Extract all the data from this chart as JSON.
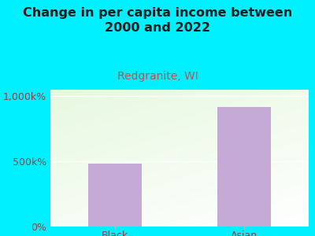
{
  "title": "Change in per capita income between\n2000 and 2022",
  "subtitle": "Redgranite, WI",
  "categories": [
    "Black",
    "Asian"
  ],
  "values": [
    480,
    920
  ],
  "ylim": [
    0,
    1050
  ],
  "yticks": [
    0,
    500,
    1000
  ],
  "ytick_labels": [
    "0%",
    "500k%",
    "1,000k%"
  ],
  "bar_color": "#c4aad4",
  "background_outer": "#00f0ff",
  "plot_bg_color": "#eaf5e2",
  "title_color": "#1a1a1a",
  "subtitle_color": "#c05050",
  "tick_label_color": "#884444",
  "x_label_color": "#884444",
  "title_fontsize": 11.5,
  "subtitle_fontsize": 10,
  "tick_fontsize": 9,
  "bar_width": 0.42
}
